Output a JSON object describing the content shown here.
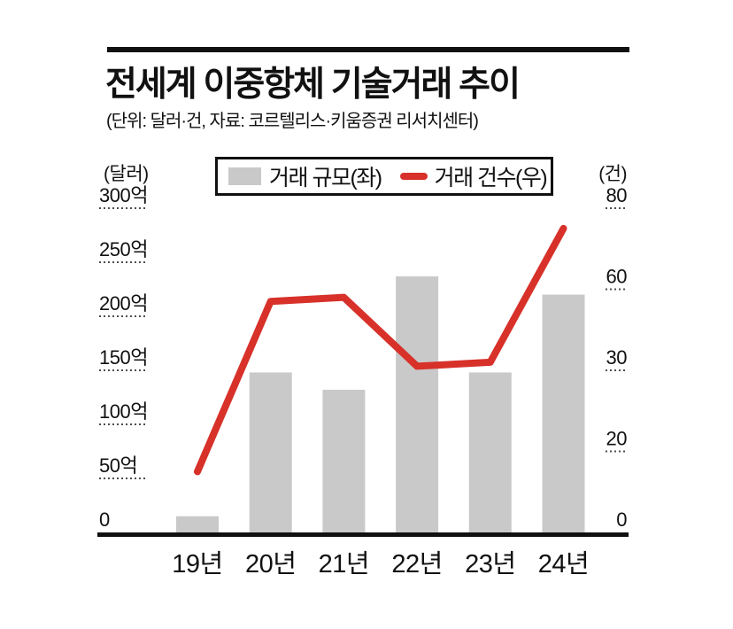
{
  "header": {
    "title": "전세계 이중항체 기술거래 추이",
    "subtitle": "(단위: 달러·건, 자료: 코르텔리스·키움증권 리서치센터)"
  },
  "legend": {
    "bar_label": "거래 규모(좌)",
    "line_label": "거래 건수(우)"
  },
  "chart_data": {
    "type": "bar+line",
    "title": "전세계 이중항체 기술거래 추이",
    "categories": [
      "19년",
      "20년",
      "21년",
      "22년",
      "23년",
      "24년"
    ],
    "series": [
      {
        "name": "거래 규모(좌)",
        "type": "bar",
        "axis": "left",
        "unit": "억 달러",
        "values": [
          15,
          148,
          132,
          237,
          148,
          220
        ]
      },
      {
        "name": "거래 건수(우)",
        "type": "line",
        "axis": "right",
        "unit": "건",
        "values": [
          15,
          57,
          58,
          41,
          42,
          75
        ]
      }
    ],
    "left_axis": {
      "unit_label": "(달러)",
      "tick_labels": [
        "300억",
        "250억",
        "200억",
        "150억",
        "100억",
        "50억",
        "0"
      ],
      "range": [
        0,
        300
      ]
    },
    "right_axis": {
      "unit_label": "(건)",
      "tick_labels": [
        "80",
        "60",
        "30",
        "20",
        "0"
      ],
      "range": [
        0,
        80
      ]
    },
    "legend_position": "top",
    "grid": "dashed tick stubs beside axis labels only, plot interior blank",
    "colors": {
      "bar": "#c9c9c9",
      "line": "#d7312a",
      "text": "#111111",
      "grid": "#4d4d4d",
      "axis": "#111111"
    }
  }
}
